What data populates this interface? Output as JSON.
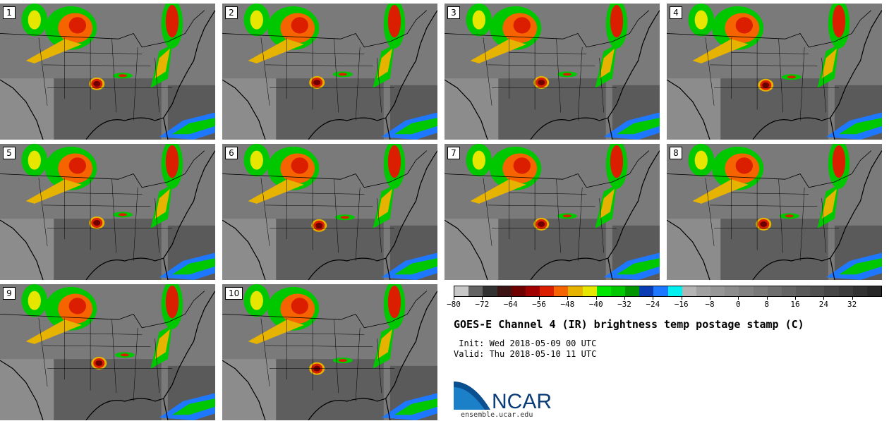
{
  "figure": {
    "title": "GOES-E Channel 4 (IR) brightness temp postage stamp (C)",
    "init_line": " Init: Wed 2018-05-09 00 UTC",
    "valid_line": "Valid: Thu 2018-05-10 11 UTC"
  },
  "panels": [
    {
      "label": "1",
      "storm": [
        0.45,
        0.59
      ]
    },
    {
      "label": "2",
      "storm": [
        0.44,
        0.58
      ]
    },
    {
      "label": "3",
      "storm": [
        0.45,
        0.58
      ]
    },
    {
      "label": "4",
      "storm": [
        0.46,
        0.6
      ]
    },
    {
      "label": "5",
      "storm": [
        0.45,
        0.58
      ]
    },
    {
      "label": "6",
      "storm": [
        0.45,
        0.6
      ]
    },
    {
      "label": "7",
      "storm": [
        0.45,
        0.59
      ]
    },
    {
      "label": "8",
      "storm": [
        0.45,
        0.59
      ]
    },
    {
      "label": "9",
      "storm": [
        0.46,
        0.58
      ]
    },
    {
      "label": "10",
      "storm": [
        0.44,
        0.62
      ]
    }
  ],
  "colorbar": {
    "colors": [
      "#c8c8c8",
      "#646464",
      "#323232",
      "#3c1414",
      "#6e0000",
      "#a00000",
      "#dc1e00",
      "#f56400",
      "#e6b400",
      "#e6e600",
      "#00e600",
      "#00c800",
      "#009600",
      "#0a3cb4",
      "#1e78ff",
      "#00f0f0",
      "#b4b4b4",
      "#a0a0a0",
      "#969696",
      "#8c8c8c",
      "#828282",
      "#787878",
      "#6e6e6e",
      "#646464",
      "#5a5a5a",
      "#505050",
      "#464646",
      "#3c3c3c",
      "#323232",
      "#282828"
    ],
    "tick_labels": [
      "−80",
      "−72",
      "−64",
      "−56",
      "−48",
      "−40",
      "−32",
      "−24",
      "−16",
      "−8",
      "0",
      "8",
      "16",
      "24",
      "32"
    ]
  },
  "logo": {
    "text": "NCAR",
    "url": "ensemble.ucar.edu"
  }
}
